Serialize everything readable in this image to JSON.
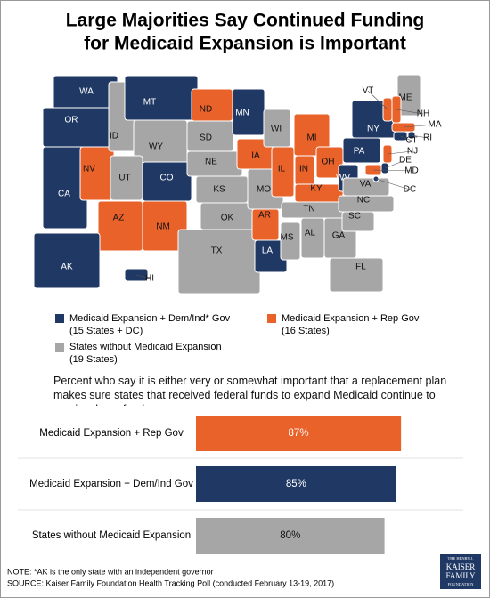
{
  "title_lines": [
    "Large Majorities Say Continued Funding",
    "for Medicaid Expansion is Important"
  ],
  "map": {
    "groups": [
      {
        "label": "Medicaid Expansion + Dem/Ind* Gov",
        "note": "(15 States + DC)",
        "color": "#1f3864",
        "text_color": "#ffffff"
      },
      {
        "label": "Medicaid Expansion + Rep Gov",
        "note": "(16 States)",
        "color": "#e8622a",
        "text_color": "#111111"
      },
      {
        "label": "States without Medicaid Expansion",
        "note": "(19 States)",
        "color": "#a6a6a6",
        "text_color": "#111111"
      }
    ],
    "states": [
      {
        "label": "WA",
        "group": 0
      },
      {
        "label": "OR",
        "group": 0
      },
      {
        "label": "CA",
        "group": 0
      },
      {
        "label": "NV",
        "group": 1
      },
      {
        "label": "ID",
        "group": 2
      },
      {
        "label": "MT",
        "group": 0
      },
      {
        "label": "WY",
        "group": 2
      },
      {
        "label": "UT",
        "group": 2
      },
      {
        "label": "CO",
        "group": 0
      },
      {
        "label": "AZ",
        "group": 1
      },
      {
        "label": "NM",
        "group": 1
      },
      {
        "label": "ND",
        "group": 1
      },
      {
        "label": "SD",
        "group": 2
      },
      {
        "label": "NE",
        "group": 2
      },
      {
        "label": "KS",
        "group": 2
      },
      {
        "label": "OK",
        "group": 2
      },
      {
        "label": "TX",
        "group": 2
      },
      {
        "label": "MN",
        "group": 0
      },
      {
        "label": "IA",
        "group": 1
      },
      {
        "label": "MO",
        "group": 2
      },
      {
        "label": "AR",
        "group": 1
      },
      {
        "label": "LA",
        "group": 0
      },
      {
        "label": "WI",
        "group": 2
      },
      {
        "label": "IL",
        "group": 1
      },
      {
        "label": "MS",
        "group": 2
      },
      {
        "label": "MI",
        "group": 1
      },
      {
        "label": "IN",
        "group": 1
      },
      {
        "label": "KY",
        "group": 1
      },
      {
        "label": "TN",
        "group": 2
      },
      {
        "label": "AL",
        "group": 2
      },
      {
        "label": "OH",
        "group": 1
      },
      {
        "label": "WV",
        "group": 0
      },
      {
        "label": "GA",
        "group": 2
      },
      {
        "label": "FL",
        "group": 2
      },
      {
        "label": "PA",
        "group": 0
      },
      {
        "label": "NY",
        "group": 0
      },
      {
        "label": "VA",
        "group": 2
      },
      {
        "label": "NC",
        "group": 2
      },
      {
        "label": "SC",
        "group": 2
      },
      {
        "label": "ME",
        "group": 2
      },
      {
        "label": "VT",
        "group": 1
      },
      {
        "label": "NH",
        "group": 1
      },
      {
        "label": "MA",
        "group": 1
      },
      {
        "label": "RI",
        "group": 0
      },
      {
        "label": "CT",
        "group": 0
      },
      {
        "label": "NJ",
        "group": 1
      },
      {
        "label": "DE",
        "group": 0
      },
      {
        "label": "MD",
        "group": 1
      },
      {
        "label": "DC",
        "group": 0
      },
      {
        "label": "AK",
        "group": 0
      },
      {
        "label": "HI",
        "group": 0
      }
    ]
  },
  "chart_data": {
    "type": "bar",
    "subtitle": "Percent who say it is either very or somewhat important that a replacement plan makes sure states that received federal funds to expand Medicaid continue to receive those funds:",
    "categories": [
      "Medicaid Expansion + Rep Gov",
      "Medicaid Expansion + Dem/Ind Gov",
      "States without Medicaid Expansion"
    ],
    "values": [
      87,
      85,
      80
    ],
    "value_labels": [
      "87%",
      "85%",
      "80%"
    ],
    "colors": [
      "#e8622a",
      "#1f3864",
      "#a6a6a6"
    ],
    "label_colors": [
      "#ffffff",
      "#ffffff",
      "#111111"
    ],
    "xlim": [
      0,
      100
    ]
  },
  "footnotes": [
    "NOTE: *AK is the only state with an independent governor",
    "SOURCE: Kaiser Family Foundation Health Tracking Poll (conducted February 13-19, 2017)"
  ],
  "logo": [
    "THE HENRY J.",
    "KAISER",
    "FAMILY",
    "FOUNDATION"
  ]
}
